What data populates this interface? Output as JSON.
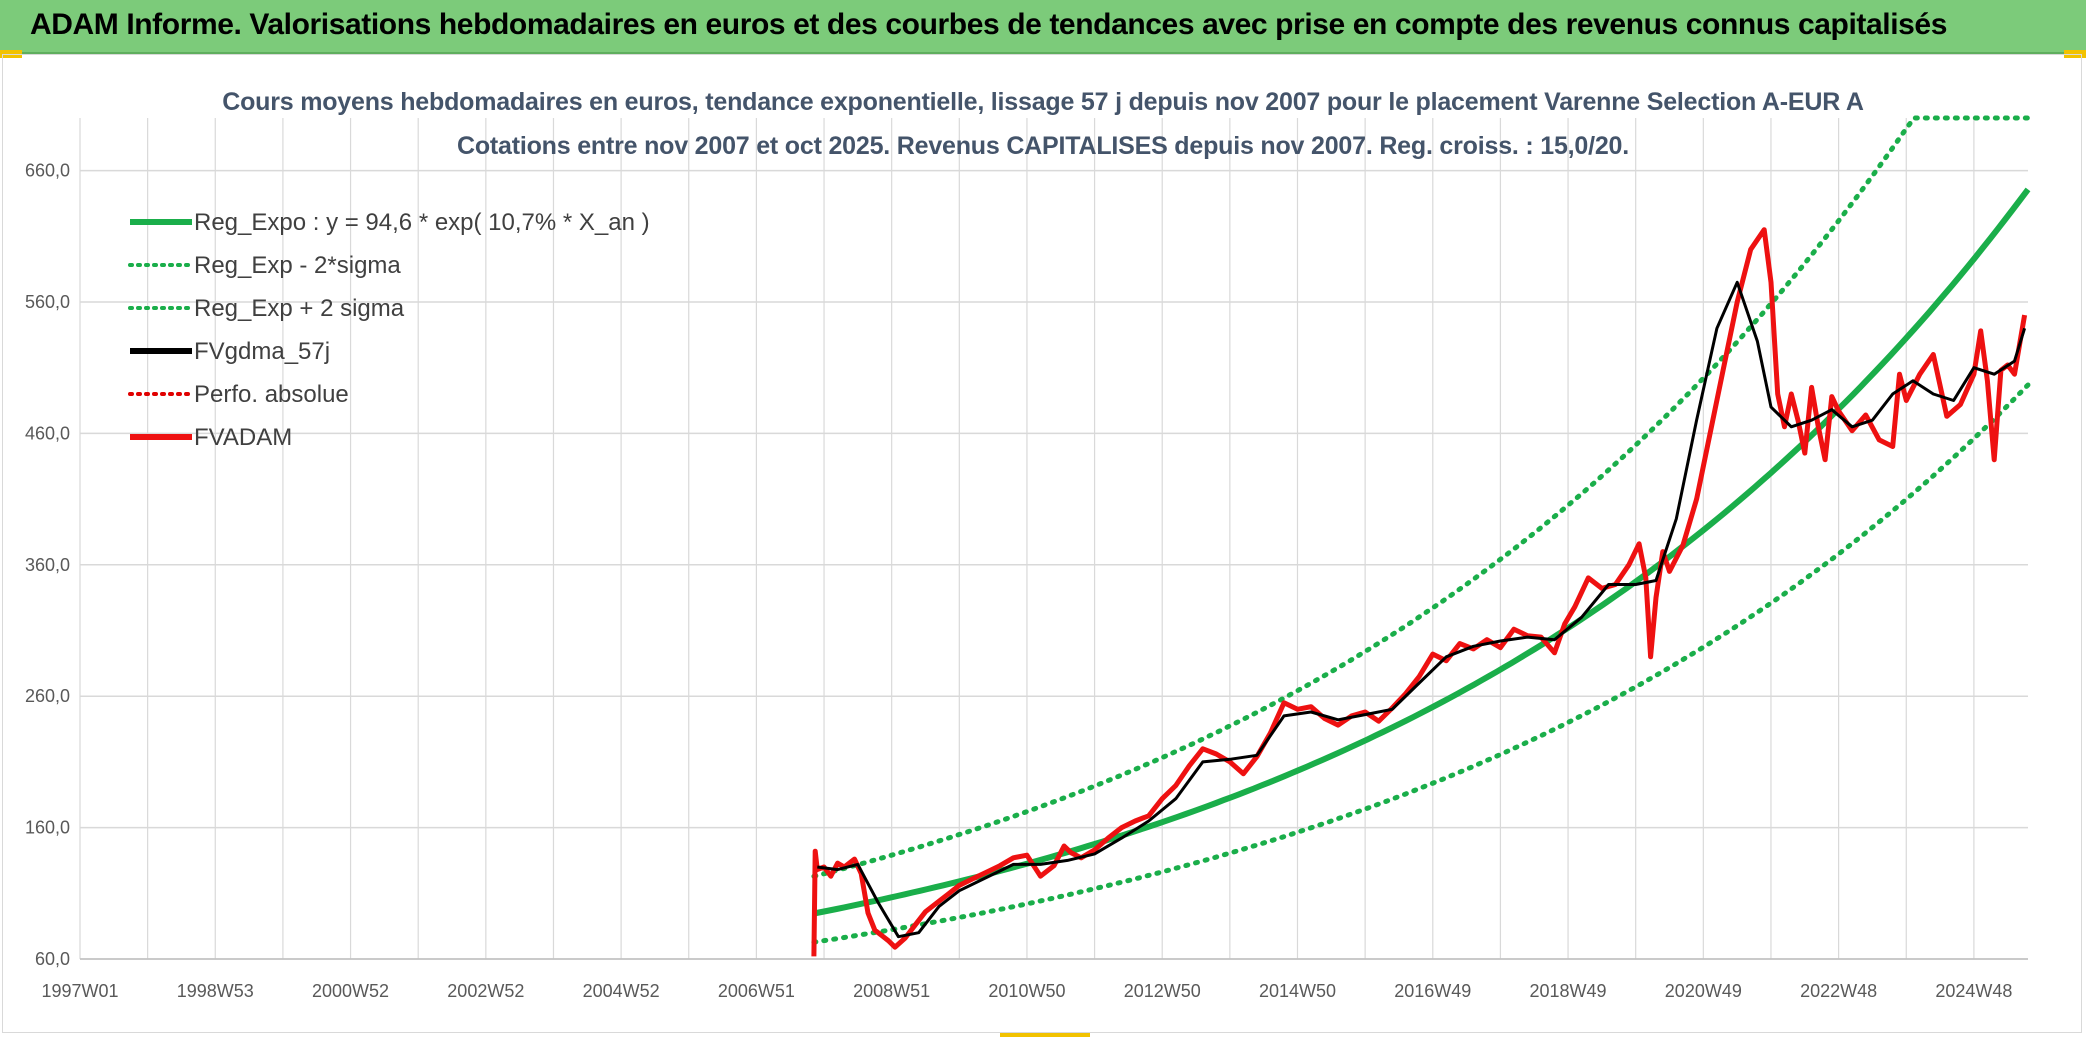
{
  "banner": {
    "title": "ADAM Informe. Valorisations hebdomadaires en euros et des courbes de tendances avec prise en compte des revenus connus capitalisés"
  },
  "colors": {
    "banner": "#7ccb7a",
    "trend": "#1aae4a",
    "sigma": "#1aae4a",
    "smooth": "#000000",
    "perf": "#e00000",
    "fvadam": "#ee1111",
    "grid": "#d9d9d9",
    "title": "#44546a"
  },
  "chart_data": {
    "type": "line",
    "title_line1": "Cours moyens hebdomadaires en euros, tendance exponentielle, lissage 57 j depuis nov 2007 pour le placement Varenne Selection A-EUR A",
    "title_line2": "Cotations entre nov 2007 et oct 2025. Revenus CAPITALISES depuis nov 2007. Reg. croiss. : 15,0/20.",
    "x_range": [
      1997.0,
      2025.8
    ],
    "ylim": [
      60,
      700
    ],
    "y_ticks": [
      "60,0",
      "160,0",
      "260,0",
      "360,0",
      "460,0",
      "560,0",
      "660,0"
    ],
    "y_tick_values": [
      60,
      160,
      260,
      360,
      460,
      560,
      660
    ],
    "x_ticks": [
      "1997W01",
      "1998W53",
      "2000W52",
      "2002W52",
      "2004W52",
      "2006W51",
      "2008W51",
      "2010W50",
      "2012W50",
      "2014W50",
      "2016W49",
      "2018W49",
      "2020W49",
      "2022W48",
      "2024W48"
    ],
    "x_tick_values": [
      1997.0,
      1999.0,
      2001.0,
      2003.0,
      2005.0,
      2007.0,
      2009.0,
      2011.0,
      2013.0,
      2015.0,
      2017.0,
      2019.0,
      2021.0,
      2023.0,
      2025.0
    ],
    "legend": [
      {
        "label": "Reg_Expo : y = 94,6 * exp( 10,7% *  X_an )",
        "style": "solid",
        "color": "#1aae4a"
      },
      {
        "label": "Reg_Exp - 2*sigma",
        "style": "dotted",
        "color": "#1aae4a"
      },
      {
        "label": "Reg_Exp + 2 sigma",
        "style": "dotted",
        "color": "#1aae4a"
      },
      {
        "label": "FVgdma_57j",
        "style": "solid",
        "color": "#000000"
      },
      {
        "label": "Perfo. absolue",
        "style": "dotted",
        "color": "#e00000"
      },
      {
        "label": "FVADAM",
        "style": "solid",
        "color": "#ee1111"
      }
    ],
    "trend": {
      "start_year": 2007.85,
      "end_year": 2025.8,
      "formula": "y = 94,6 * exp(0.107 * X_an)",
      "a": 94.6,
      "b": 0.107,
      "x0": 2007.85,
      "lower_factor": 0.7695,
      "upper_factor": 1.2994,
      "upper_cap": 700
    },
    "series": [
      {
        "name": "FVADAM",
        "x": [
          2007.85,
          2007.87,
          2007.9,
          2008.0,
          2008.1,
          2008.2,
          2008.3,
          2008.45,
          2008.55,
          2008.65,
          2008.75,
          2008.85,
          2008.95,
          2009.05,
          2009.2,
          2009.35,
          2009.5,
          2009.7,
          2009.85,
          2010.0,
          2010.2,
          2010.4,
          2010.6,
          2010.8,
          2011.0,
          2011.2,
          2011.4,
          2011.55,
          2011.65,
          2011.8,
          2012.0,
          2012.2,
          2012.4,
          2012.6,
          2012.8,
          2013.0,
          2013.2,
          2013.4,
          2013.6,
          2013.8,
          2014.0,
          2014.2,
          2014.4,
          2014.6,
          2014.8,
          2015.0,
          2015.2,
          2015.4,
          2015.6,
          2015.8,
          2016.0,
          2016.2,
          2016.4,
          2016.6,
          2016.8,
          2017.0,
          2017.2,
          2017.4,
          2017.6,
          2017.8,
          2018.0,
          2018.2,
          2018.4,
          2018.6,
          2018.8,
          2018.95,
          2019.1,
          2019.3,
          2019.5,
          2019.7,
          2019.9,
          2020.05,
          2020.15,
          2020.22,
          2020.3,
          2020.4,
          2020.5,
          2020.7,
          2020.9,
          2021.1,
          2021.3,
          2021.5,
          2021.7,
          2021.9,
          2022.0,
          2022.1,
          2022.2,
          2022.3,
          2022.4,
          2022.5,
          2022.6,
          2022.7,
          2022.8,
          2022.9,
          2023.0,
          2023.2,
          2023.4,
          2023.6,
          2023.8,
          2023.9,
          2024.0,
          2024.2,
          2024.4,
          2024.6,
          2024.8,
          2025.0,
          2025.1,
          2025.2,
          2025.3,
          2025.4,
          2025.5,
          2025.6,
          2025.75
        ],
        "values": [
          62,
          142,
          128,
          130,
          123,
          133,
          130,
          136,
          125,
          95,
          82,
          78,
          74,
          69,
          76,
          86,
          96,
          104,
          110,
          116,
          121,
          126,
          131,
          137,
          139,
          123,
          131,
          146,
          141,
          137,
          143,
          152,
          160,
          165,
          169,
          182,
          192,
          207,
          220,
          216,
          210,
          201,
          214,
          232,
          255,
          250,
          252,
          243,
          238,
          245,
          248,
          241,
          251,
          262,
          275,
          292,
          287,
          300,
          296,
          303,
          297,
          311,
          306,
          305,
          293,
          315,
          328,
          350,
          342,
          345,
          360,
          376,
          350,
          290,
          335,
          370,
          355,
          375,
          410,
          460,
          510,
          560,
          600,
          615,
          575,
          490,
          465,
          490,
          470,
          445,
          495,
          465,
          440,
          488,
          477,
          462,
          474,
          455,
          450,
          505,
          485,
          505,
          520,
          473,
          482,
          505,
          538,
          500,
          440,
          508,
          512,
          505,
          550
        ]
      },
      {
        "name": "FVgdma_57j",
        "x": [
          2007.9,
          2008.2,
          2008.5,
          2008.8,
          2009.1,
          2009.4,
          2009.7,
          2010.0,
          2010.4,
          2010.8,
          2011.2,
          2011.6,
          2012.0,
          2012.4,
          2012.8,
          2013.2,
          2013.6,
          2014.0,
          2014.4,
          2014.8,
          2015.2,
          2015.6,
          2016.0,
          2016.4,
          2016.8,
          2017.2,
          2017.6,
          2018.0,
          2018.4,
          2018.8,
          2019.2,
          2019.6,
          2020.0,
          2020.3,
          2020.6,
          2020.9,
          2021.2,
          2021.5,
          2021.8,
          2022.0,
          2022.3,
          2022.6,
          2022.9,
          2023.2,
          2023.5,
          2023.8,
          2024.1,
          2024.4,
          2024.7,
          2025.0,
          2025.3,
          2025.6,
          2025.75
        ],
        "values": [
          130,
          128,
          132,
          103,
          77,
          80,
          100,
          112,
          122,
          132,
          132,
          135,
          140,
          152,
          165,
          182,
          210,
          212,
          215,
          245,
          248,
          242,
          246,
          250,
          270,
          290,
          298,
          302,
          305,
          303,
          320,
          345,
          345,
          348,
          395,
          470,
          540,
          575,
          530,
          480,
          465,
          470,
          478,
          465,
          470,
          490,
          500,
          490,
          485,
          510,
          505,
          515,
          540
        ]
      }
    ]
  }
}
